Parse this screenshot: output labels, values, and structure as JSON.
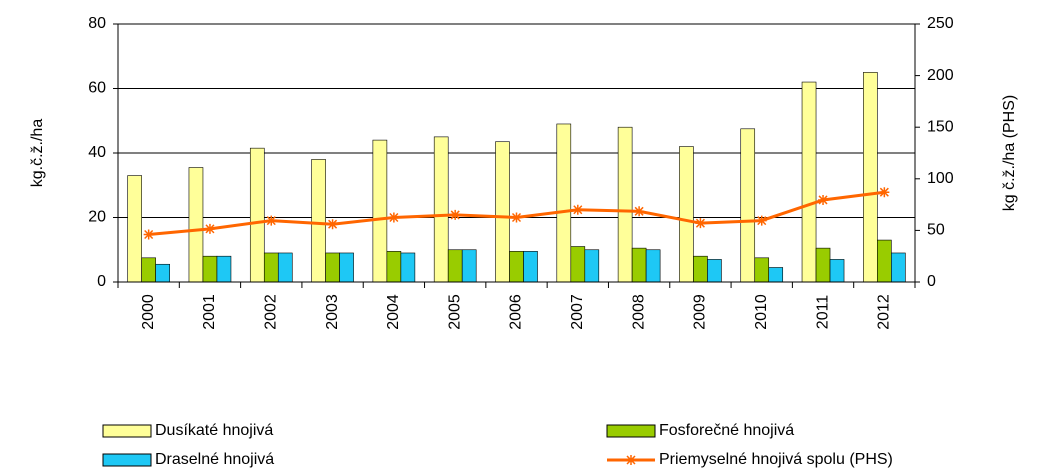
{
  "chart_data": {
    "type": "bar",
    "y_label": "kg.č.ž./ha",
    "y2_label": "kg č.ž./ha (PHS)",
    "categories": [
      "2000",
      "2001",
      "2002",
      "2003",
      "2004",
      "2005",
      "2006",
      "2007",
      "2008",
      "2009",
      "2010",
      "2011",
      "2012"
    ],
    "series": [
      {
        "name": "Dusíkaté hnojivá",
        "type": "bar",
        "color": "#ffff99",
        "values": [
          33,
          35.5,
          41.5,
          38,
          44,
          45,
          43.5,
          49,
          48,
          42,
          47.5,
          62,
          65
        ]
      },
      {
        "name": "Fosforečné hnojivá",
        "type": "bar",
        "color": "#99cc00",
        "values": [
          7.5,
          8,
          9,
          9,
          9.5,
          10,
          9.5,
          11,
          10.5,
          8,
          7.5,
          10.5,
          13
        ]
      },
      {
        "name": "Draselné hnojivá",
        "type": "bar",
        "color": "#1ec8f5",
        "values": [
          5.5,
          8,
          9,
          9,
          9,
          10,
          9.5,
          10,
          10,
          7,
          4.5,
          7,
          9
        ]
      },
      {
        "name": "Priemyselné hnojivá spolu (PHS)",
        "type": "line",
        "axis": "y2",
        "color": "#ff6600",
        "marker": "star",
        "values": [
          46,
          51.5,
          59.5,
          56,
          62.5,
          65,
          62.5,
          70,
          68.5,
          57,
          59.5,
          79.5,
          87
        ]
      }
    ],
    "ylim": [
      0,
      80
    ],
    "yticks": [
      0,
      20,
      40,
      60,
      80
    ],
    "y2lim": [
      0,
      250
    ],
    "y2ticks": [
      0,
      50,
      100,
      150,
      200,
      250
    ],
    "grid": true,
    "legend": "bottom"
  }
}
